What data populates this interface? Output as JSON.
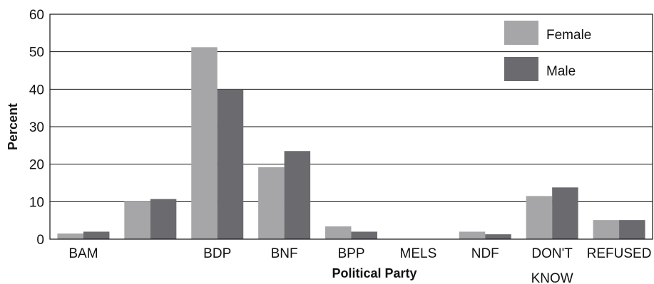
{
  "chart_data": {
    "type": "bar",
    "xlabel": "Political Party",
    "ylabel": "Percent",
    "ylim": [
      0,
      60
    ],
    "yticks": [
      0,
      10,
      20,
      30,
      40,
      50,
      60
    ],
    "grid": true,
    "legend_position": "top-right",
    "categories": [
      [
        "BAM"
      ],
      [
        ""
      ],
      [
        "BDP"
      ],
      [
        "BNF"
      ],
      [
        "BPP"
      ],
      [
        "MELS"
      ],
      [
        "NDF"
      ],
      [
        "DON'T",
        "KNOW"
      ],
      [
        "REFUSED"
      ]
    ],
    "series": [
      {
        "name": "Female",
        "color": "#a6a6a8",
        "values": [
          1.5,
          10,
          51.2,
          19.2,
          3.4,
          0,
          2.0,
          11.5,
          5.1
        ]
      },
      {
        "name": "Male",
        "color": "#6a6a6f",
        "values": [
          2.0,
          10.7,
          40,
          23.5,
          2.0,
          0,
          1.3,
          13.8,
          5.1
        ]
      }
    ]
  }
}
